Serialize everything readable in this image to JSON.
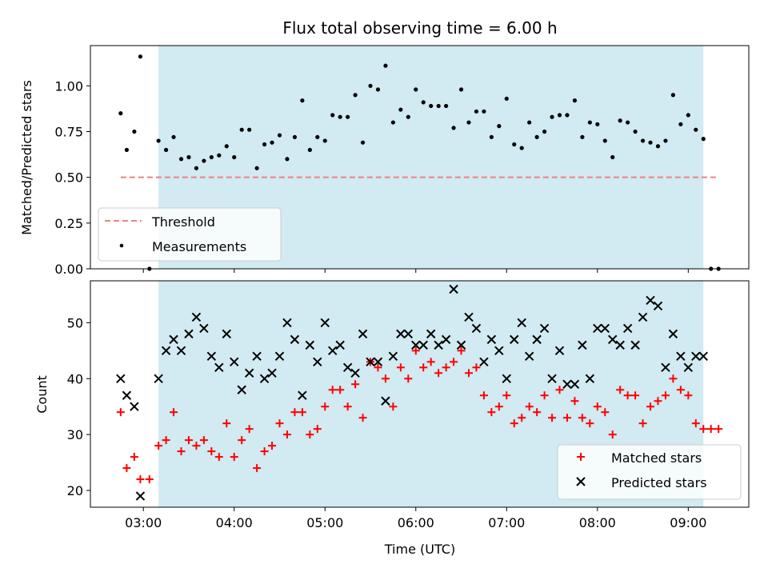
{
  "chart_data": [
    {
      "type": "scatter",
      "title": "Flux total observing time = 6.00 h",
      "xlabel": "",
      "ylabel": "Matched/Predicted stars",
      "ylim": [
        0,
        1.22
      ],
      "yticks": [
        "0.00",
        "0.25",
        "0.50",
        "0.75",
        "1.00"
      ],
      "ytick_values": [
        0,
        0.25,
        0.5,
        0.75,
        1.0
      ],
      "shaded_region": {
        "start": "03:10",
        "end": "09:10",
        "color": "#add8e6"
      },
      "threshold": {
        "name": "Threshold",
        "y": 0.5,
        "x": [
          "02:45",
          "09:20"
        ],
        "color": "#f08080"
      },
      "legend": {
        "placement": "lower-left",
        "entries": [
          "Threshold",
          "Measurements"
        ]
      },
      "series": [
        {
          "name": "Measurements",
          "color": "#000000",
          "x": [
            "02:45",
            "02:49",
            "02:54",
            "02:58",
            "03:04",
            "03:10",
            "03:15",
            "03:20",
            "03:25",
            "03:30",
            "03:35",
            "03:40",
            "03:45",
            "03:50",
            "03:55",
            "04:00",
            "04:05",
            "04:10",
            "04:15",
            "04:20",
            "04:25",
            "04:30",
            "04:35",
            "04:40",
            "04:45",
            "04:50",
            "04:55",
            "05:00",
            "05:05",
            "05:10",
            "05:15",
            "05:20",
            "05:25",
            "05:30",
            "05:35",
            "05:40",
            "05:45",
            "05:50",
            "05:55",
            "06:00",
            "06:05",
            "06:10",
            "06:15",
            "06:20",
            "06:25",
            "06:30",
            "06:35",
            "06:40",
            "06:45",
            "06:50",
            "06:55",
            "07:00",
            "07:05",
            "07:10",
            "07:15",
            "07:20",
            "07:25",
            "07:30",
            "07:35",
            "07:40",
            "07:45",
            "07:50",
            "07:55",
            "08:00",
            "08:05",
            "08:10",
            "08:15",
            "08:20",
            "08:25",
            "08:30",
            "08:35",
            "08:40",
            "08:45",
            "08:50",
            "08:55",
            "09:00",
            "09:05",
            "09:10",
            "09:15",
            "09:20"
          ],
          "y": [
            0.85,
            0.65,
            0.75,
            1.16,
            0.0,
            0.7,
            0.65,
            0.72,
            0.6,
            0.61,
            0.55,
            0.59,
            0.61,
            0.62,
            0.67,
            0.61,
            0.76,
            0.76,
            0.55,
            0.68,
            0.69,
            0.73,
            0.6,
            0.72,
            0.92,
            0.65,
            0.72,
            0.7,
            0.84,
            0.83,
            0.83,
            0.95,
            0.69,
            1.0,
            0.98,
            1.11,
            0.8,
            0.87,
            0.83,
            0.98,
            0.91,
            0.89,
            0.89,
            0.89,
            0.77,
            0.98,
            0.8,
            0.86,
            0.86,
            0.72,
            0.78,
            0.93,
            0.68,
            0.66,
            0.8,
            0.72,
            0.75,
            0.83,
            0.84,
            0.84,
            0.92,
            0.72,
            0.8,
            0.79,
            0.7,
            0.61,
            0.81,
            0.8,
            0.75,
            0.7,
            0.69,
            0.67,
            0.7,
            0.95,
            0.79,
            0.84,
            0.76,
            0.71,
            0.0,
            0.0
          ]
        }
      ]
    },
    {
      "type": "scatter",
      "title": "",
      "xlabel": "Time (UTC)",
      "ylabel": "Count",
      "ylim": [
        17,
        57.5
      ],
      "xlim": [
        "02:25",
        "09:40"
      ],
      "xticks": [
        "03:00",
        "04:00",
        "05:00",
        "06:00",
        "07:00",
        "08:00",
        "09:00"
      ],
      "yticks": [
        "20",
        "30",
        "40",
        "50"
      ],
      "ytick_values": [
        20,
        30,
        40,
        50
      ],
      "shaded_region": {
        "start": "03:10",
        "end": "09:10",
        "color": "#add8e6"
      },
      "legend": {
        "placement": "lower-right",
        "entries": [
          "Matched stars",
          "Predicted stars"
        ]
      },
      "series": [
        {
          "name": "Matched stars",
          "marker": "plus",
          "color": "#ff0000",
          "x": [
            "02:45",
            "02:49",
            "02:54",
            "02:58",
            "03:04",
            "03:10",
            "03:15",
            "03:20",
            "03:25",
            "03:30",
            "03:35",
            "03:40",
            "03:45",
            "03:50",
            "03:55",
            "04:00",
            "04:05",
            "04:10",
            "04:15",
            "04:20",
            "04:25",
            "04:30",
            "04:35",
            "04:40",
            "04:45",
            "04:50",
            "04:55",
            "05:00",
            "05:05",
            "05:10",
            "05:15",
            "05:20",
            "05:25",
            "05:30",
            "05:35",
            "05:40",
            "05:45",
            "05:50",
            "05:55",
            "06:00",
            "06:05",
            "06:10",
            "06:15",
            "06:20",
            "06:25",
            "06:30",
            "06:35",
            "06:40",
            "06:45",
            "06:50",
            "06:55",
            "07:00",
            "07:05",
            "07:10",
            "07:15",
            "07:20",
            "07:25",
            "07:30",
            "07:35",
            "07:40",
            "07:45",
            "07:50",
            "07:55",
            "08:00",
            "08:05",
            "08:10",
            "08:15",
            "08:20",
            "08:25",
            "08:30",
            "08:35",
            "08:40",
            "08:45",
            "08:50",
            "08:55",
            "09:00",
            "09:05",
            "09:10",
            "09:15",
            "09:20"
          ],
          "y": [
            34,
            24,
            26,
            22,
            22,
            28,
            29,
            34,
            27,
            29,
            28,
            29,
            27,
            26,
            32,
            26,
            29,
            31,
            24,
            27,
            28,
            32,
            30,
            34,
            34,
            30,
            31,
            35,
            38,
            38,
            35,
            39,
            33,
            43,
            42,
            40,
            35,
            42,
            40,
            45,
            42,
            43,
            41,
            42,
            43,
            45,
            41,
            42,
            37,
            34,
            35,
            37,
            32,
            33,
            35,
            34,
            37,
            33,
            38,
            33,
            36,
            33,
            32,
            35,
            34,
            30,
            38,
            37,
            37,
            32,
            35,
            36,
            37,
            40,
            38,
            37,
            32,
            31,
            31,
            31
          ]
        },
        {
          "name": "Predicted stars",
          "marker": "x",
          "color": "#000000",
          "x": [
            "02:45",
            "02:49",
            "02:54",
            "02:58",
            "03:10",
            "03:15",
            "03:20",
            "03:25",
            "03:30",
            "03:35",
            "03:40",
            "03:45",
            "03:50",
            "03:55",
            "04:00",
            "04:05",
            "04:10",
            "04:15",
            "04:20",
            "04:25",
            "04:30",
            "04:35",
            "04:40",
            "04:45",
            "04:50",
            "04:55",
            "05:00",
            "05:05",
            "05:10",
            "05:15",
            "05:20",
            "05:25",
            "05:30",
            "05:35",
            "05:40",
            "05:45",
            "05:50",
            "05:55",
            "06:00",
            "06:05",
            "06:10",
            "06:15",
            "06:20",
            "06:25",
            "06:30",
            "06:35",
            "06:40",
            "06:45",
            "06:50",
            "06:55",
            "07:00",
            "07:05",
            "07:10",
            "07:15",
            "07:20",
            "07:25",
            "07:30",
            "07:35",
            "07:40",
            "07:45",
            "07:50",
            "07:55",
            "08:00",
            "08:05",
            "08:10",
            "08:15",
            "08:20",
            "08:25",
            "08:30",
            "08:35",
            "08:40",
            "08:45",
            "08:50",
            "08:55",
            "09:00",
            "09:05",
            "09:10"
          ],
          "y": [
            40,
            37,
            35,
            19,
            40,
            45,
            47,
            45,
            48,
            51,
            49,
            44,
            42,
            48,
            43,
            38,
            41,
            44,
            40,
            41,
            44,
            50,
            47,
            37,
            46,
            43,
            50,
            45,
            46,
            42,
            41,
            48,
            43,
            43,
            36,
            44,
            48,
            48,
            46,
            46,
            48,
            46,
            47,
            56,
            46,
            51,
            49,
            43,
            47,
            45,
            40,
            47,
            50,
            44,
            47,
            49,
            40,
            45,
            39,
            39,
            46,
            40,
            49,
            49,
            47,
            46,
            49,
            46,
            51,
            54,
            53,
            42,
            48,
            44,
            42,
            44,
            44
          ]
        }
      ]
    }
  ]
}
